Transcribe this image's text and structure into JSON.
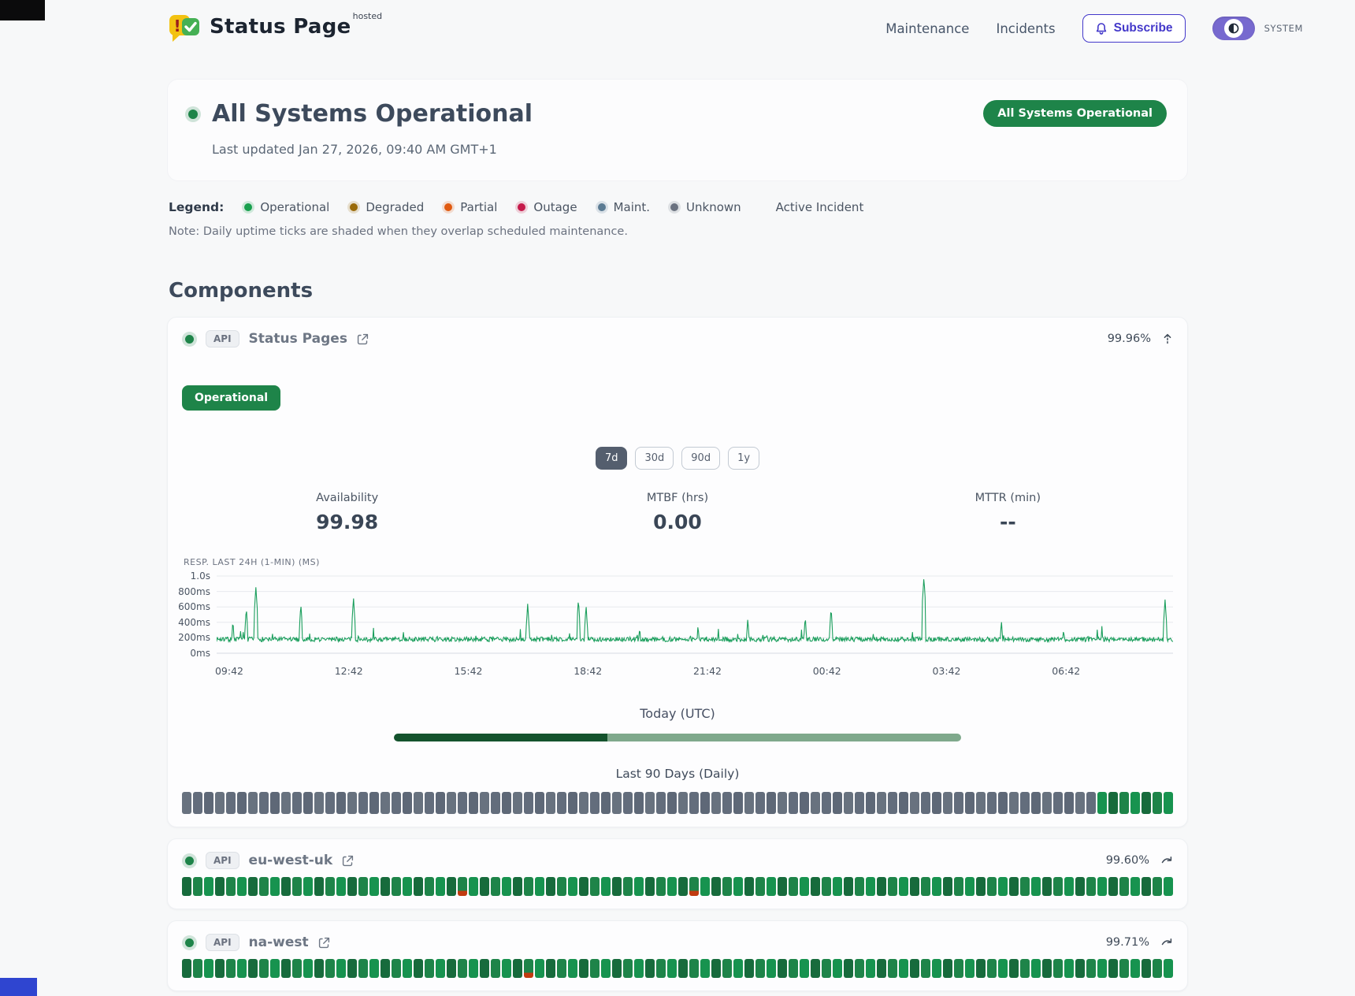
{
  "header": {
    "brand": {
      "name": "Status Page",
      "superscript": "hosted"
    },
    "nav": [
      {
        "label": "Maintenance"
      },
      {
        "label": "Incidents"
      }
    ],
    "subscribe_label": "Subscribe",
    "theme_label": "SYSTEM"
  },
  "hero": {
    "title": "All Systems Operational",
    "updated": "Last updated Jan 27, 2026, 09:40 AM GMT+1",
    "badge": "All Systems Operational",
    "dot_color": "#1e8449"
  },
  "legend": {
    "label": "Legend:",
    "items": [
      {
        "label": "Operational",
        "color": "#18a04e"
      },
      {
        "label": "Degraded",
        "color": "#9a6a08"
      },
      {
        "label": "Partial",
        "color": "#e05a10"
      },
      {
        "label": "Outage",
        "color": "#c51a4a"
      },
      {
        "label": "Maint.",
        "color": "#5b7b93"
      },
      {
        "label": "Unknown",
        "color": "#6b7280"
      }
    ],
    "active_incident_label": "Active Incident",
    "note": "Note: Daily uptime ticks are shaded when they overlap scheduled maintenance."
  },
  "components_heading": "Components",
  "main_component": {
    "tag": "API",
    "name": "Status Pages",
    "uptime": "99.96%",
    "status_badge": "Operational",
    "ranges": [
      "7d",
      "30d",
      "90d",
      "1y"
    ],
    "active_range": "7d",
    "stats": [
      {
        "label": "Availability",
        "value": "99.98"
      },
      {
        "label": "MTBF (hrs)",
        "value": "0.00"
      },
      {
        "label": "MTTR (min)",
        "value": "--"
      }
    ],
    "today_label": "Today (UTC)",
    "today_fill_pct": 37.6,
    "last90_label": "Last 90 Days (Daily)",
    "ticks_rle": [
      [
        "unknown",
        83
      ],
      [
        "operational",
        7
      ]
    ]
  },
  "chart_data": {
    "type": "line",
    "title": "RESP. LAST 24H (1-MIN) (MS)",
    "line_color": "#1a9e5c",
    "y_ticks": [
      "1.0s",
      "800ms",
      "600ms",
      "400ms",
      "200ms",
      "0ms"
    ],
    "y_max_ms": 1000,
    "x_ticks": [
      "09:42",
      "12:42",
      "15:42",
      "18:42",
      "21:42",
      "00:42",
      "03:42",
      "06:42"
    ],
    "baseline_ms": 160,
    "noise_ms": 60,
    "spikes": [
      [
        0.017,
        430
      ],
      [
        0.031,
        590
      ],
      [
        0.041,
        860
      ],
      [
        0.088,
        640
      ],
      [
        0.143,
        720
      ],
      [
        0.195,
        300
      ],
      [
        0.325,
        640
      ],
      [
        0.378,
        700
      ],
      [
        0.386,
        620
      ],
      [
        0.442,
        350
      ],
      [
        0.503,
        380
      ],
      [
        0.555,
        460
      ],
      [
        0.615,
        480
      ],
      [
        0.642,
        590
      ],
      [
        0.739,
        980
      ],
      [
        0.82,
        430
      ],
      [
        0.885,
        330
      ],
      [
        0.925,
        350
      ],
      [
        0.991,
        700
      ]
    ]
  },
  "sub_components": [
    {
      "tag": "API",
      "name": "eu-west-uk",
      "uptime": "99.60%",
      "ticks_rle": [
        [
          "operational",
          25
        ],
        [
          "partial",
          1
        ],
        [
          "operational",
          20
        ],
        [
          "partial",
          1
        ],
        [
          "operational",
          43
        ]
      ]
    },
    {
      "tag": "API",
      "name": "na-west",
      "uptime": "99.71%",
      "ticks_rle": [
        [
          "operational",
          31
        ],
        [
          "partial",
          1
        ],
        [
          "operational",
          58
        ]
      ]
    }
  ],
  "colors": {
    "accent_green": "#1e8449",
    "badge_green": "#1e8449",
    "indigo": "#4338ca",
    "toggle_purple": "#7769cf",
    "today_fill": "#14532d",
    "today_rest": "#7fa98c",
    "tick_unknown": [
      "#636d7c",
      "#5e6877",
      "#68727f"
    ],
    "tick_operational": [
      "#1e8449",
      "#17934f",
      "#176b3c"
    ],
    "tick_partial_red": "#c13b10",
    "grid_line": "#e8eaee"
  }
}
